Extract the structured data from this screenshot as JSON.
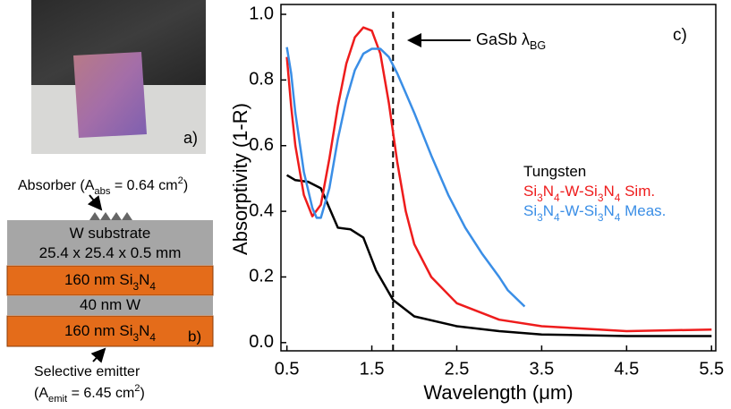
{
  "photo": {
    "label": "a)"
  },
  "diagram": {
    "absorber_label": [
      "Absorber (A",
      "abs",
      " = 0.64 cm",
      "2",
      ")"
    ],
    "layers": [
      "W substrate",
      "25.4 x 25.4 x 0.5 mm",
      "160 nm Si3N4",
      "40 nm W",
      "160 nm Si3N4"
    ],
    "label": "b)",
    "emitter_label": "Selective emitter",
    "emitter_area": [
      "(A",
      "emit",
      " = 6.45 cm",
      "2",
      ")"
    ]
  },
  "chart_data": {
    "type": "line",
    "panel_label": "c)",
    "x_label": "Wavelength (μm)",
    "y_label": "Absorptivity (1-R)",
    "annotation": [
      "GaSb λ",
      "BG"
    ],
    "bandgap_wavelength": 1.75,
    "xlim": [
      0.43,
      5.55
    ],
    "ylim": [
      -0.025,
      1.03
    ],
    "xticks": [
      0.5,
      1.5,
      2.5,
      3.5,
      4.5,
      5.5
    ],
    "yticks": [
      {
        "value": 0,
        "label": "0.0"
      },
      0.2,
      0.4,
      0.6,
      0.8,
      {
        "value": 1,
        "label": "1.0"
      }
    ],
    "series": [
      {
        "name": "Tungsten",
        "color": "#000000",
        "x": [
          0.5,
          0.6,
          0.75,
          0.9,
          1.0,
          1.1,
          1.25,
          1.4,
          1.55,
          1.75,
          2.0,
          2.5,
          3.0,
          3.5,
          4.5,
          5.5
        ],
        "values": [
          0.51,
          0.495,
          0.49,
          0.47,
          0.41,
          0.35,
          0.345,
          0.32,
          0.22,
          0.13,
          0.08,
          0.05,
          0.035,
          0.025,
          0.02,
          0.02
        ]
      },
      {
        "name": "Si3N4-W-Si3N4 Sim.",
        "color": "#ee1c1c",
        "x": [
          0.5,
          0.55,
          0.6,
          0.7,
          0.8,
          0.9,
          1.0,
          1.1,
          1.2,
          1.3,
          1.4,
          1.5,
          1.6,
          1.7,
          1.8,
          1.9,
          2.0,
          2.2,
          2.5,
          3.0,
          3.5,
          4.5,
          5.5
        ],
        "values": [
          0.87,
          0.72,
          0.6,
          0.45,
          0.385,
          0.42,
          0.56,
          0.72,
          0.85,
          0.93,
          0.96,
          0.95,
          0.88,
          0.73,
          0.55,
          0.4,
          0.3,
          0.2,
          0.12,
          0.07,
          0.05,
          0.035,
          0.04
        ]
      },
      {
        "name": "Si3N4-W-Si3N4 Meas.",
        "color": "#3a8ee6",
        "x": [
          0.5,
          0.55,
          0.6,
          0.7,
          0.8,
          0.85,
          0.9,
          1.0,
          1.1,
          1.2,
          1.3,
          1.4,
          1.5,
          1.6,
          1.7,
          1.8,
          1.9,
          2.0,
          2.2,
          2.4,
          2.6,
          2.8,
          3.0,
          3.1,
          3.3
        ],
        "values": [
          0.9,
          0.82,
          0.7,
          0.52,
          0.41,
          0.38,
          0.38,
          0.47,
          0.62,
          0.74,
          0.83,
          0.88,
          0.895,
          0.895,
          0.87,
          0.82,
          0.76,
          0.7,
          0.57,
          0.45,
          0.35,
          0.27,
          0.2,
          0.16,
          0.11
        ]
      }
    ]
  }
}
